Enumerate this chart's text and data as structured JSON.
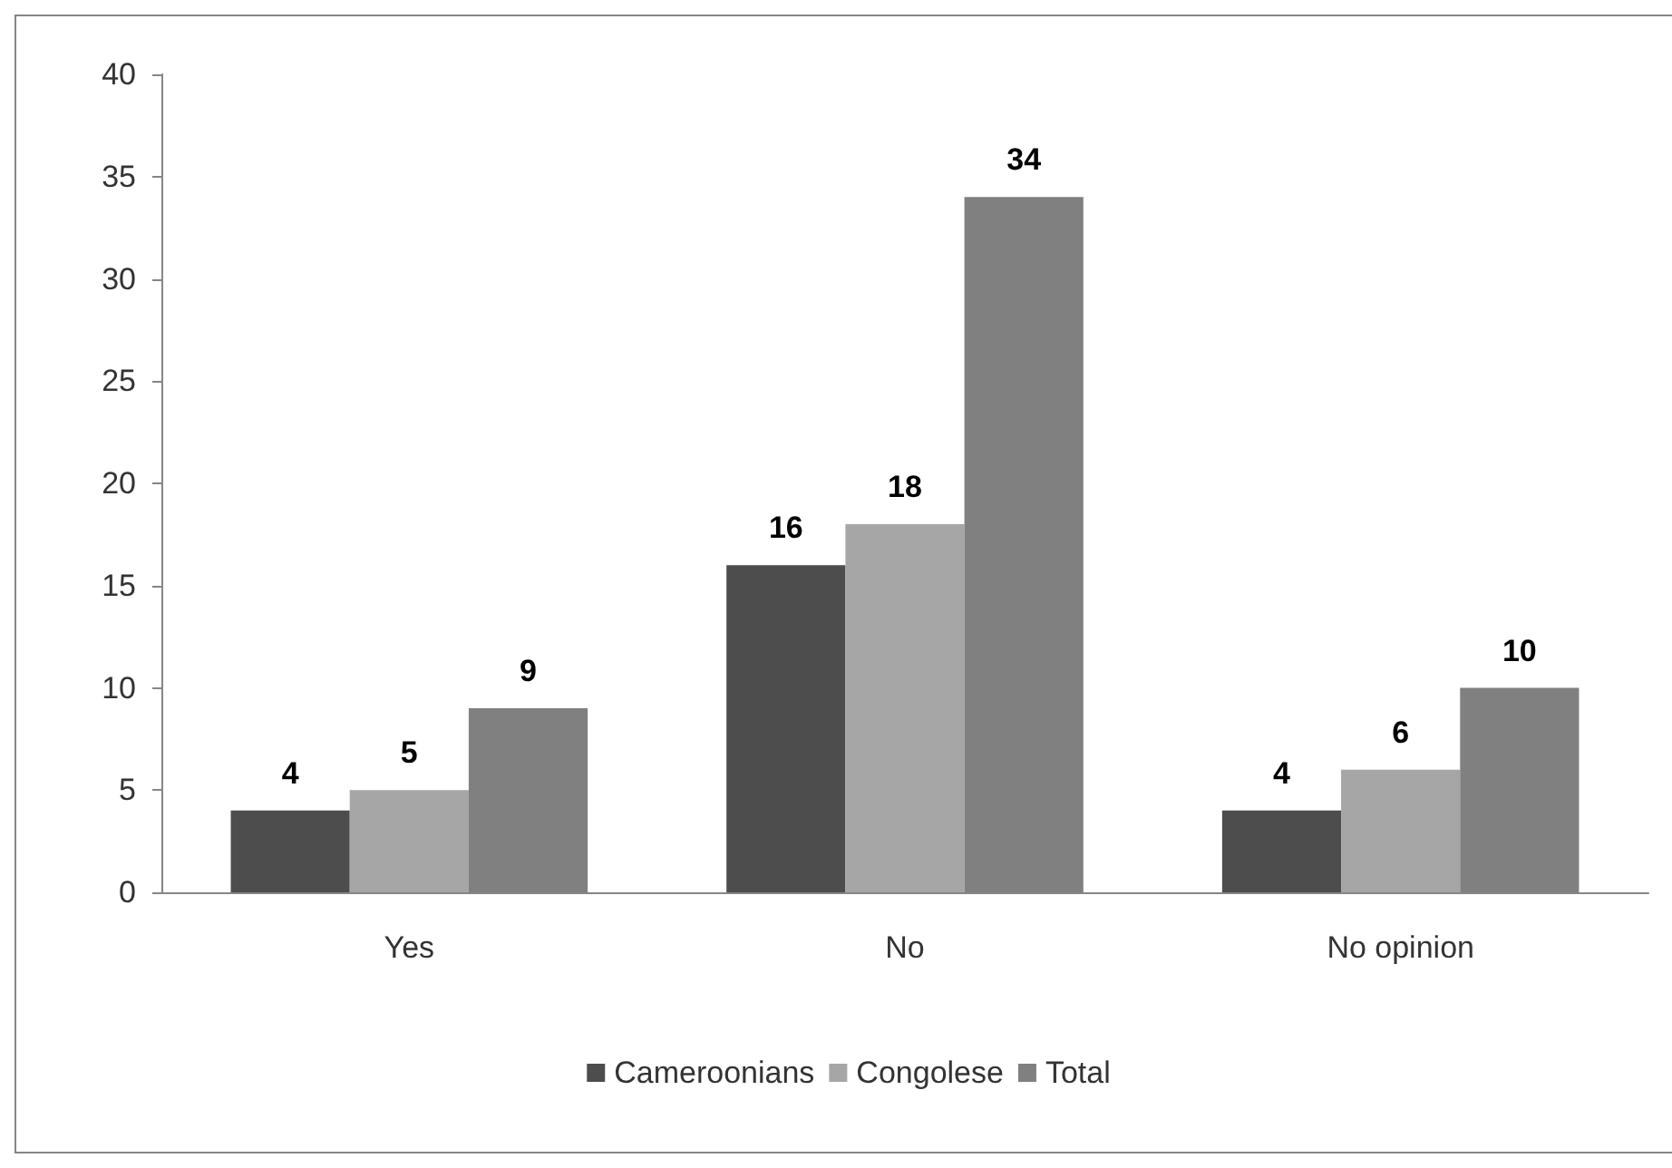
{
  "chart_data": {
    "type": "bar",
    "categories": [
      "Yes",
      "No",
      "No opinion"
    ],
    "series": [
      {
        "name": "Cameroonians",
        "color": "#4d4d4d",
        "values": [
          4,
          16,
          4
        ]
      },
      {
        "name": "Congolese",
        "color": "#a6a6a6",
        "values": [
          5,
          18,
          6
        ]
      },
      {
        "name": "Total",
        "color": "#808080",
        "values": [
          9,
          34,
          10
        ]
      }
    ],
    "ylim": [
      0,
      40
    ],
    "yticks": [
      0,
      5,
      10,
      15,
      20,
      25,
      30,
      35,
      40
    ],
    "grid": false,
    "legend": "bottom",
    "data_labels": true
  }
}
